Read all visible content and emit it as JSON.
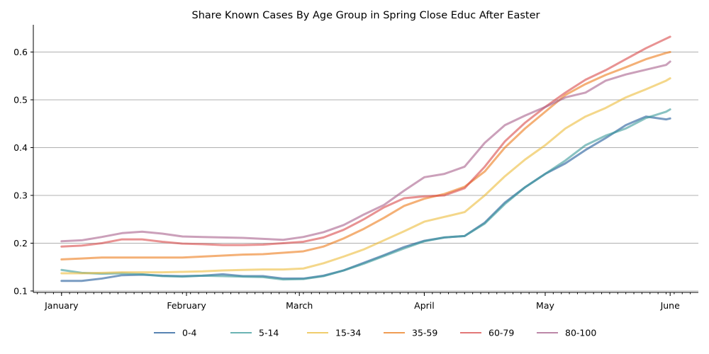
{
  "chart_data": {
    "type": "line",
    "title": "Share Known Cases By Age Group in Spring Close Educ After Easter",
    "xlabel": "",
    "ylabel": "",
    "x_ticks": [
      "January",
      "February",
      "March",
      "April",
      "May",
      "June"
    ],
    "x_tick_days": [
      0,
      31,
      59,
      90,
      120,
      151
    ],
    "x_range_days": [
      -7,
      158
    ],
    "x_minor_tick_step_days": 2,
    "ylim": [
      0.097,
      0.657
    ],
    "y_ticks": [
      0.1,
      0.2,
      0.3,
      0.4,
      0.5,
      0.6
    ],
    "y_tick_labels": [
      "0.1",
      "0.2",
      "0.3",
      "0.4",
      "0.5",
      "0.6"
    ],
    "grid": "horizontal",
    "legend_position": "bottom-center",
    "x": [
      0,
      5,
      10,
      15,
      20,
      25,
      30,
      35,
      40,
      45,
      50,
      55,
      60,
      65,
      70,
      75,
      80,
      85,
      90,
      95,
      100,
      105,
      110,
      115,
      120,
      125,
      130,
      135,
      140,
      145,
      150,
      151
    ],
    "series": [
      {
        "name": "0-4",
        "color": "#1f5a99",
        "values": [
          0.121,
          0.121,
          0.126,
          0.133,
          0.134,
          0.132,
          0.131,
          0.132,
          0.135,
          0.131,
          0.131,
          0.126,
          0.126,
          0.132,
          0.143,
          0.159,
          0.175,
          0.192,
          0.205,
          0.212,
          0.215,
          0.243,
          0.285,
          0.317,
          0.345,
          0.367,
          0.395,
          0.42,
          0.447,
          0.465,
          0.459,
          0.461
        ]
      },
      {
        "name": "5-14",
        "color": "#3a9a9a",
        "values": [
          0.144,
          0.138,
          0.136,
          0.137,
          0.135,
          0.131,
          0.13,
          0.132,
          0.131,
          0.13,
          0.129,
          0.124,
          0.125,
          0.131,
          0.143,
          0.157,
          0.173,
          0.189,
          0.204,
          0.212,
          0.215,
          0.241,
          0.282,
          0.317,
          0.345,
          0.373,
          0.405,
          0.425,
          0.44,
          0.462,
          0.475,
          0.48
        ]
      },
      {
        "name": "15-34",
        "color": "#ecbd3c",
        "values": [
          0.137,
          0.137,
          0.138,
          0.139,
          0.139,
          0.139,
          0.14,
          0.141,
          0.143,
          0.144,
          0.145,
          0.145,
          0.147,
          0.158,
          0.172,
          0.187,
          0.206,
          0.225,
          0.245,
          0.255,
          0.265,
          0.3,
          0.34,
          0.375,
          0.405,
          0.44,
          0.465,
          0.483,
          0.505,
          0.522,
          0.54,
          0.545
        ]
      },
      {
        "name": "35-59",
        "color": "#ec7c1a",
        "values": [
          0.166,
          0.168,
          0.17,
          0.17,
          0.17,
          0.17,
          0.17,
          0.172,
          0.174,
          0.176,
          0.177,
          0.18,
          0.183,
          0.193,
          0.21,
          0.23,
          0.253,
          0.278,
          0.293,
          0.303,
          0.318,
          0.35,
          0.4,
          0.44,
          0.475,
          0.51,
          0.533,
          0.552,
          0.568,
          0.585,
          0.598,
          0.6
        ]
      },
      {
        "name": "60-79",
        "color": "#d94a4a",
        "values": [
          0.193,
          0.195,
          0.2,
          0.208,
          0.208,
          0.203,
          0.199,
          0.198,
          0.196,
          0.196,
          0.197,
          0.2,
          0.203,
          0.212,
          0.228,
          0.25,
          0.275,
          0.294,
          0.298,
          0.3,
          0.315,
          0.36,
          0.413,
          0.452,
          0.485,
          0.515,
          0.542,
          0.562,
          0.585,
          0.608,
          0.628,
          0.632
        ]
      },
      {
        "name": "80-100",
        "color": "#a8608c",
        "values": [
          0.204,
          0.206,
          0.213,
          0.221,
          0.224,
          0.22,
          0.214,
          0.213,
          0.212,
          0.211,
          0.209,
          0.207,
          0.213,
          0.223,
          0.238,
          0.26,
          0.28,
          0.31,
          0.338,
          0.345,
          0.36,
          0.41,
          0.447,
          0.467,
          0.485,
          0.505,
          0.515,
          0.54,
          0.553,
          0.563,
          0.573,
          0.58
        ]
      }
    ]
  }
}
